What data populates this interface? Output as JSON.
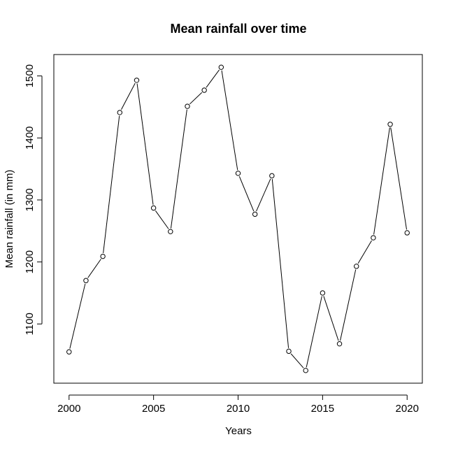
{
  "chart_data": {
    "type": "line",
    "title": "Mean rainfall over time",
    "xlabel": "Years",
    "ylabel": "Mean rainfall (in mm)",
    "x": [
      2000,
      2001,
      2002,
      2003,
      2004,
      2005,
      2006,
      2007,
      2008,
      2009,
      2010,
      2011,
      2012,
      2013,
      2014,
      2015,
      2016,
      2017,
      2018,
      2019,
      2020
    ],
    "series": [
      {
        "values": [
          1055,
          1170,
          1209,
          1441,
          1493,
          1287,
          1249,
          1451,
          1477,
          1514,
          1343,
          1277,
          1339,
          1056,
          1025,
          1150,
          1068,
          1193,
          1239,
          1422,
          1247
        ]
      }
    ],
    "xlim": [
      1999.1,
      2020.9
    ],
    "ylim": [
      1004.5,
      1534.5
    ],
    "xticks": [
      "2000",
      "2005",
      "2010",
      "2015",
      "2020"
    ],
    "yticks": [
      "1100",
      "1200",
      "1300",
      "1400",
      "1500"
    ],
    "grid": false,
    "line_color": "#000000",
    "marker": "open-circle"
  }
}
